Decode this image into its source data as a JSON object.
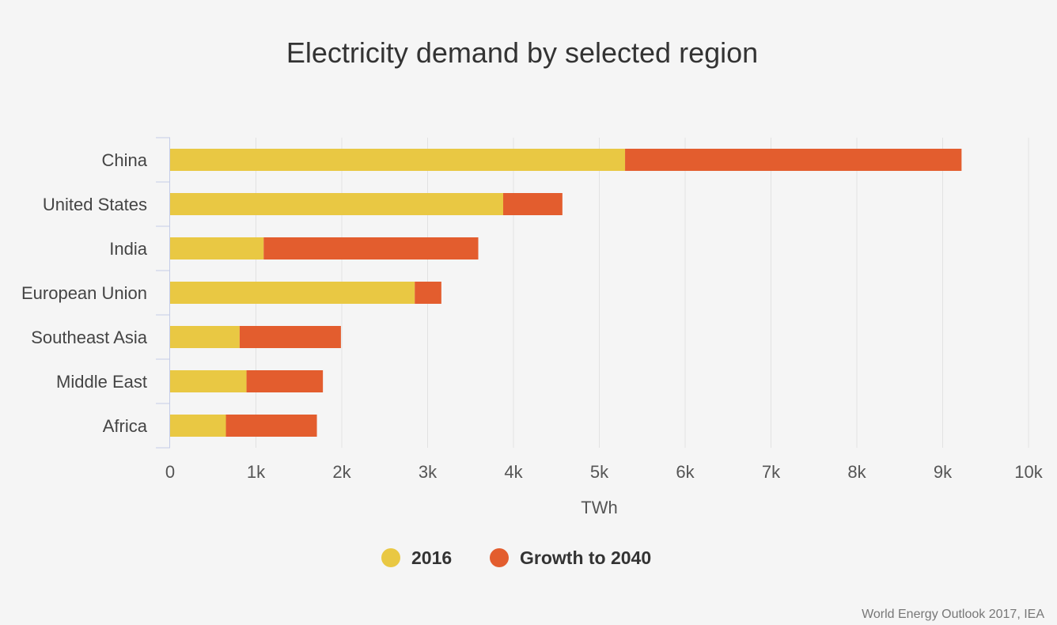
{
  "chart_data": {
    "type": "bar",
    "orientation": "horizontal",
    "stacked": true,
    "title": "Electricity demand by selected region",
    "xlabel": "TWh",
    "ylabel": "",
    "xlim": [
      0,
      10000
    ],
    "grid": true,
    "legend_position": "bottom",
    "categories": [
      "China",
      "United States",
      "India",
      "European Union",
      "Southeast Asia",
      "Middle East",
      "Africa"
    ],
    "series": [
      {
        "name": "2016",
        "color": "#e9c843",
        "values": [
          5300,
          3880,
          1090,
          2850,
          810,
          890,
          650
        ]
      },
      {
        "name": "Growth to 2040",
        "color": "#e35d2e",
        "values": [
          3920,
          690,
          2500,
          310,
          1180,
          890,
          1060
        ]
      }
    ],
    "tick_labels": [
      "0",
      "1k",
      "2k",
      "3k",
      "4k",
      "5k",
      "6k",
      "7k",
      "8k",
      "9k",
      "10k"
    ]
  },
  "source": "World Energy Outlook 2017, IEA"
}
